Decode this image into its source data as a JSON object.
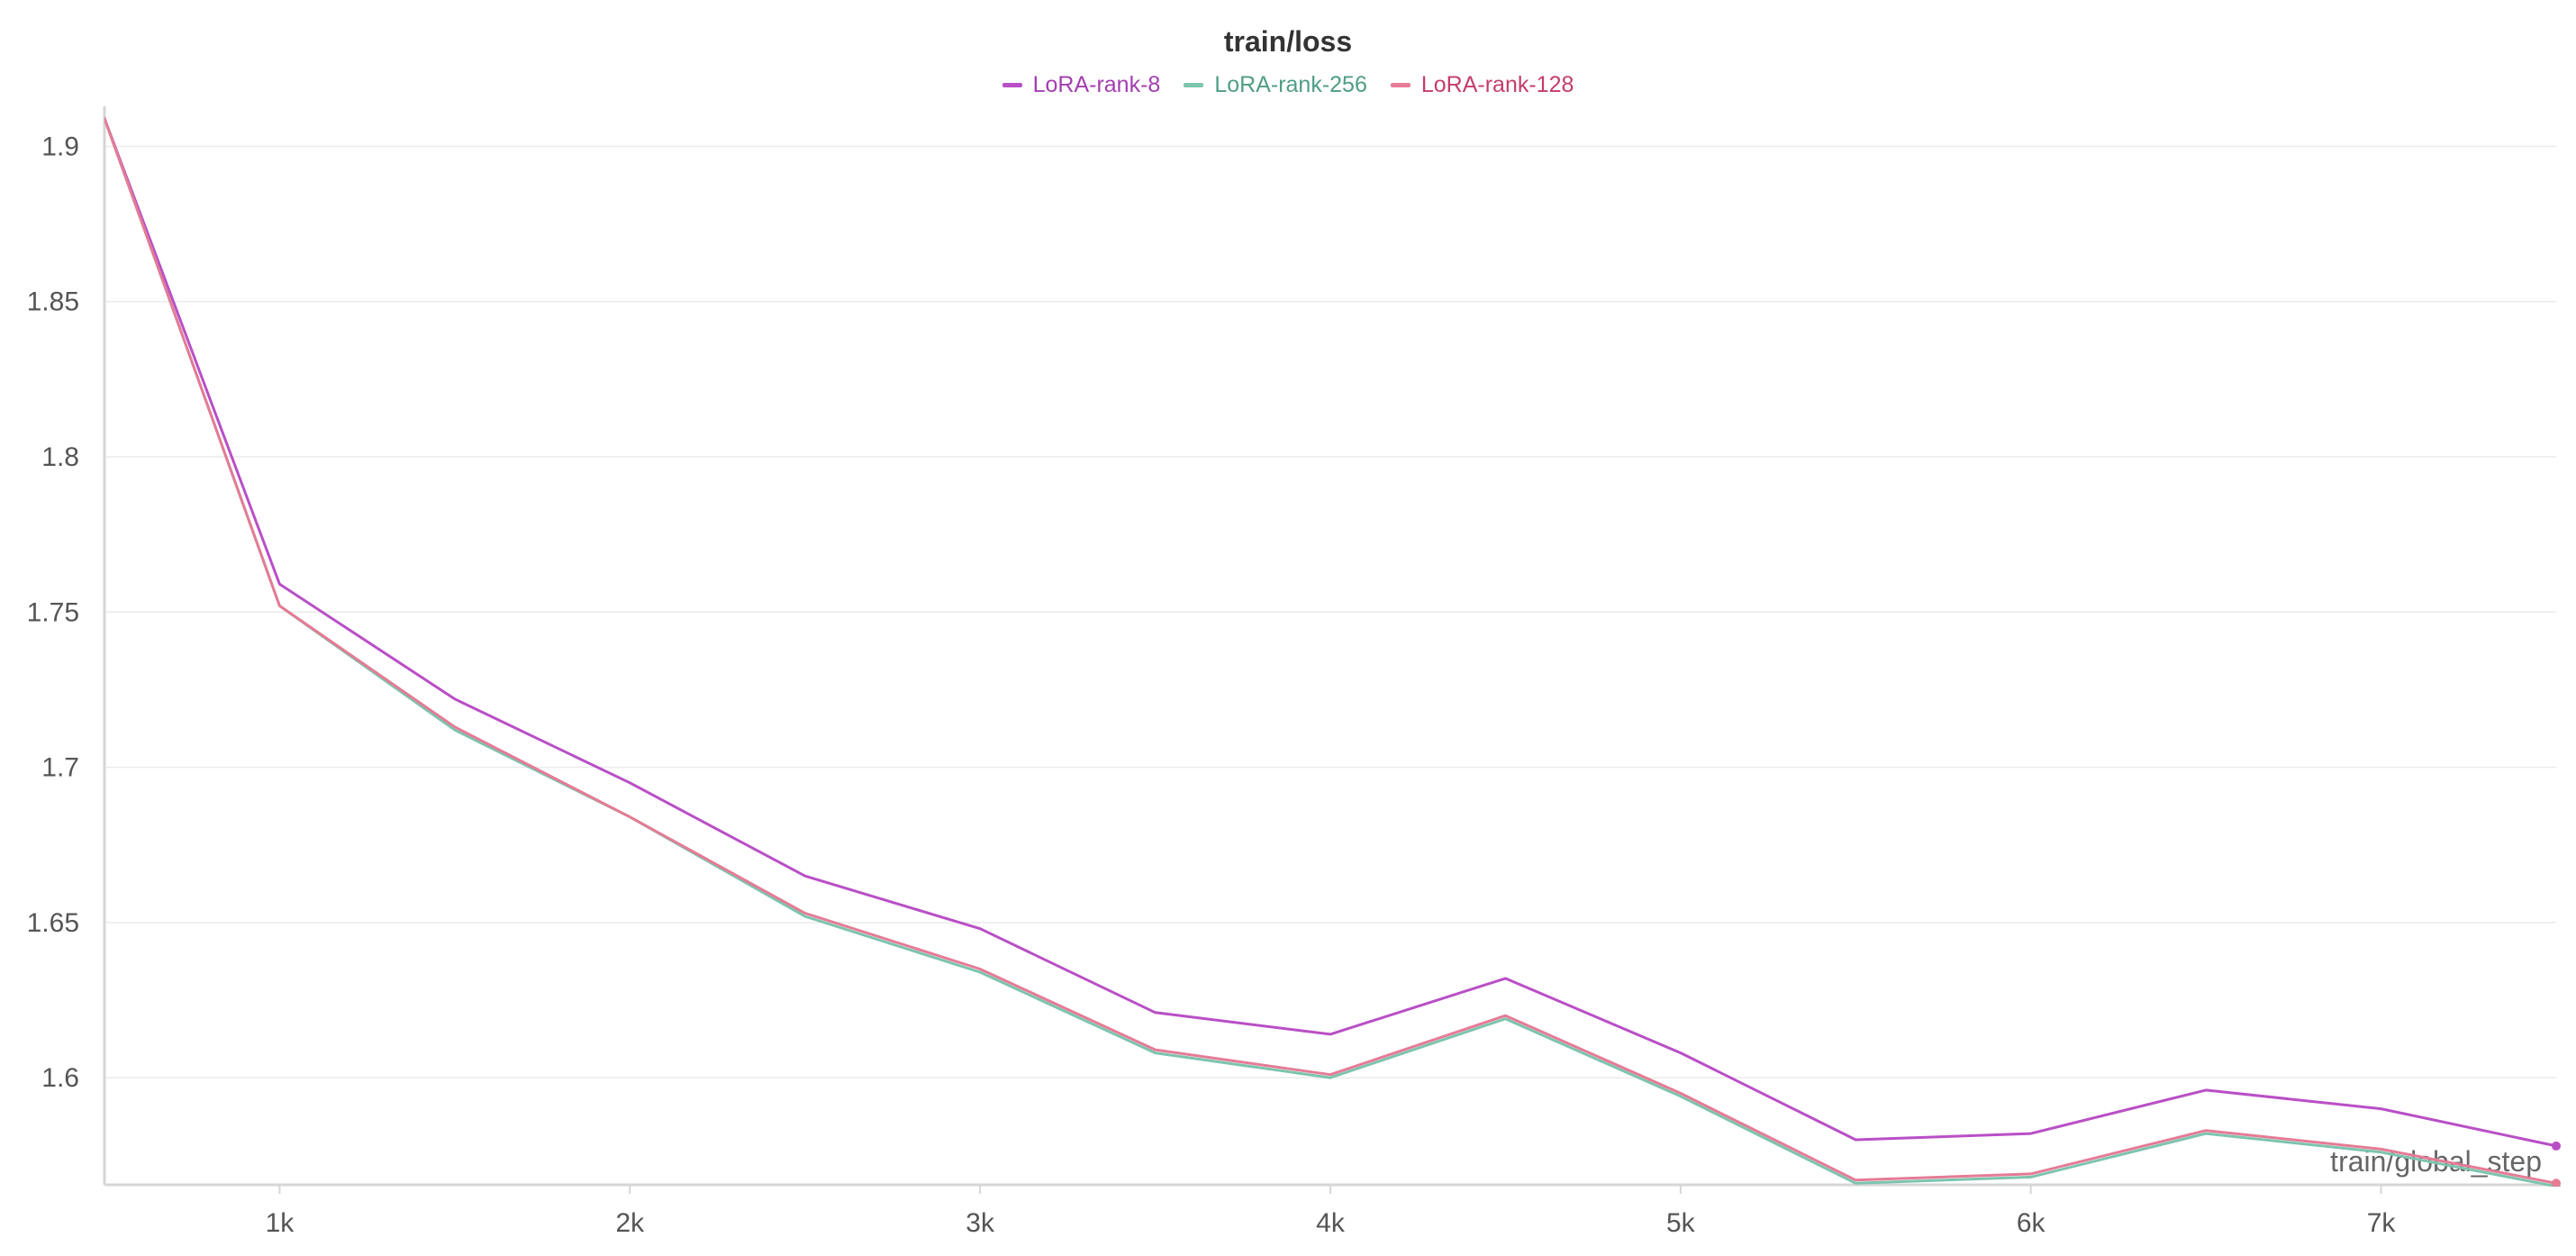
{
  "chart_data": {
    "type": "line",
    "title": "train/loss",
    "xlabel": "train/global_step",
    "ylabel": "",
    "xlim": [
      500,
      7500
    ],
    "ylim": [
      1.5655,
      1.91
    ],
    "grid": true,
    "legend_position": "top-center",
    "x_ticks": [
      1000,
      2000,
      3000,
      4000,
      5000,
      6000,
      7000
    ],
    "x_tick_labels": [
      "1k",
      "2k",
      "3k",
      "4k",
      "5k",
      "6k",
      "7k"
    ],
    "y_ticks": [
      1.6,
      1.65,
      1.7,
      1.75,
      1.8,
      1.85,
      1.9
    ],
    "y_tick_labels": [
      "1.6",
      "1.65",
      "1.7",
      "1.75",
      "1.8",
      "1.85",
      "1.9"
    ],
    "x": [
      500,
      1000,
      1500,
      2000,
      2500,
      3000,
      3500,
      4000,
      4500,
      5000,
      5500,
      6000,
      6500,
      7000,
      7500
    ],
    "series": [
      {
        "name": "LoRA-rank-8",
        "color": "#b94fc6",
        "values": [
          1.909,
          1.759,
          1.722,
          1.695,
          1.665,
          1.648,
          1.621,
          1.614,
          1.632,
          1.608,
          1.58,
          1.582,
          1.596,
          1.59,
          1.578
        ]
      },
      {
        "name": "LoRA-rank-256",
        "color": "#7cc4ae",
        "values": [
          1.909,
          1.752,
          1.712,
          1.684,
          1.652,
          1.634,
          1.608,
          1.6,
          1.619,
          1.594,
          1.566,
          1.568,
          1.582,
          1.576,
          1.565
        ]
      },
      {
        "name": "LoRA-rank-128",
        "color": "#e57b95",
        "values": [
          1.909,
          1.752,
          1.713,
          1.684,
          1.653,
          1.635,
          1.609,
          1.601,
          1.62,
          1.595,
          1.567,
          1.569,
          1.583,
          1.577,
          1.566
        ]
      }
    ]
  },
  "legend_text_colors": {
    "LoRA-rank-8": "#a43db1",
    "LoRA-rank-256": "#4f9d85",
    "LoRA-rank-128": "#c43c6b"
  }
}
